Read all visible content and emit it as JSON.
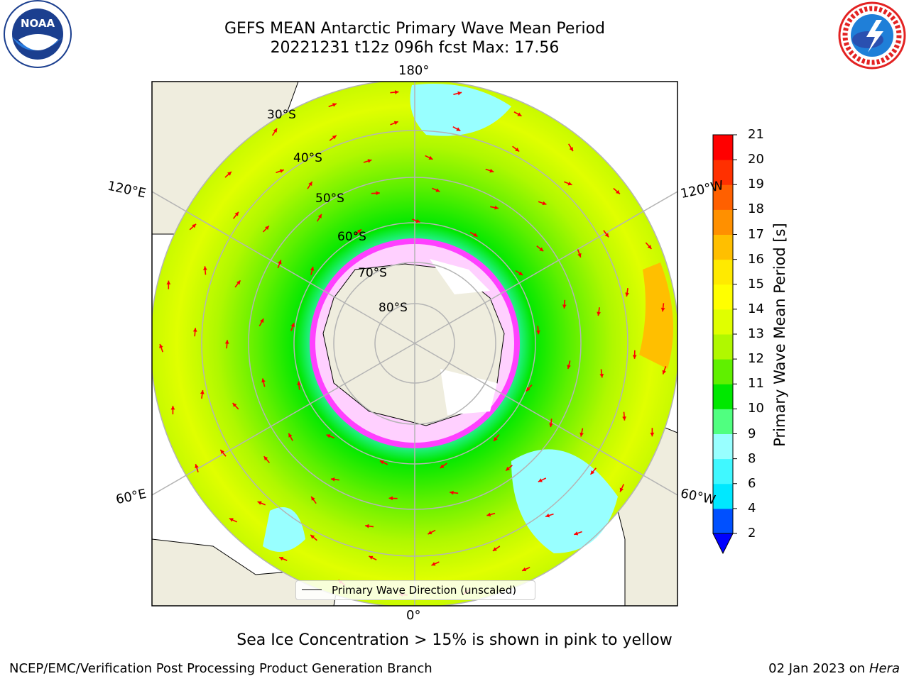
{
  "title_line1": "GEFS MEAN Antarctic Primary Wave Mean Period",
  "title_line2": "20221231 t12z 096h fcst   Max: 17.56",
  "map": {
    "longitude_labels": {
      "top": "180°",
      "bottom": "0°",
      "upper_left": "120°E",
      "upper_right": "120°W",
      "lower_left": "60°E",
      "lower_right": "60°W"
    },
    "latitude_labels": [
      "30°S",
      "40°S",
      "50°S",
      "60°S",
      "70°S",
      "80°S"
    ],
    "land_color": "#efedde",
    "arrow_color": "#ff0000"
  },
  "legend": {
    "label": "Primary Wave Direction (unscaled)"
  },
  "colorbar": {
    "label": "Primary Wave Mean Period [s]",
    "ticks": [
      "2",
      "4",
      "6",
      "8",
      "9",
      "10",
      "11",
      "12",
      "13",
      "14",
      "15",
      "16",
      "17",
      "18",
      "19",
      "20",
      "21"
    ],
    "colors": [
      "#0050ff",
      "#00e8ff",
      "#40f8ff",
      "#98ffff",
      "#50ff80",
      "#00e800",
      "#60f000",
      "#b0f800",
      "#e0ff00",
      "#ffff00",
      "#ffea00",
      "#ffbf00",
      "#ff9000",
      "#ff6000",
      "#ff3000",
      "#ff0000"
    ],
    "under_color": "#0000ff"
  },
  "note": "Sea Ice Concentration > 15% is shown in pink to yellow",
  "footer": {
    "left": "NCEP/EMC/Verification Post Processing Product Generation Branch",
    "date": "02 Jan 2023 on",
    "host": "Hera"
  },
  "logos": {
    "left": "noara-logo",
    "right": "nws-logo"
  }
}
